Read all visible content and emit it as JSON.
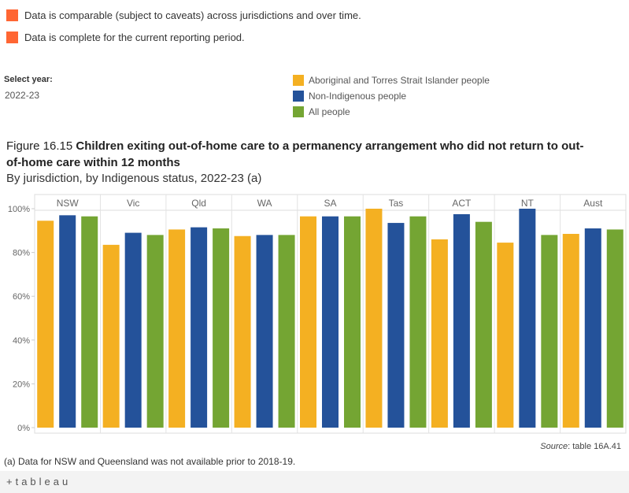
{
  "notes": [
    {
      "text": "Data is comparable (subject to caveats) across jurisdictions and over time.",
      "color": "#ff6633"
    },
    {
      "text": "Data is complete for the current reporting period.",
      "color": "#ff6633"
    }
  ],
  "filter": {
    "label": "Select year:",
    "value": "2022-23"
  },
  "figure": {
    "number": "Figure 16.15",
    "title": "Children exiting out-of-home care to a permanency arrangement who did not return to out-of-home care within 12 months",
    "subtitle": "By jurisdiction, by Indigenous status, 2022-23 (a)"
  },
  "source": {
    "prefix": "Source",
    "text": ": table 16A.41"
  },
  "footnote": "(a) Data for NSW and Queensland was not available prior to 2018-19.",
  "footer": {
    "logo_text": "+tableau"
  },
  "chart_data": {
    "type": "bar",
    "categories": [
      "NSW",
      "Vic",
      "Qld",
      "WA",
      "SA",
      "Tas",
      "ACT",
      "NT",
      "Aust"
    ],
    "series": [
      {
        "name": "Aboriginal and Torres Strait Islander people",
        "color": "#f4b022",
        "values": [
          94.5,
          83.5,
          90.5,
          87.5,
          96.5,
          100,
          86,
          84.5,
          88.5
        ]
      },
      {
        "name": "Non-Indigenous people",
        "color": "#24529a",
        "values": [
          97,
          89,
          91.5,
          88,
          96.5,
          93.5,
          97.5,
          100,
          91
        ]
      },
      {
        "name": "All people",
        "color": "#74a533",
        "values": [
          96.5,
          88,
          91,
          88,
          96.5,
          96.5,
          94,
          88,
          90.5
        ]
      }
    ],
    "yticks": [
      "0%",
      "20%",
      "40%",
      "60%",
      "80%",
      "100%"
    ],
    "ylim": [
      0,
      100
    ],
    "grid": false,
    "legend": "top-right"
  }
}
